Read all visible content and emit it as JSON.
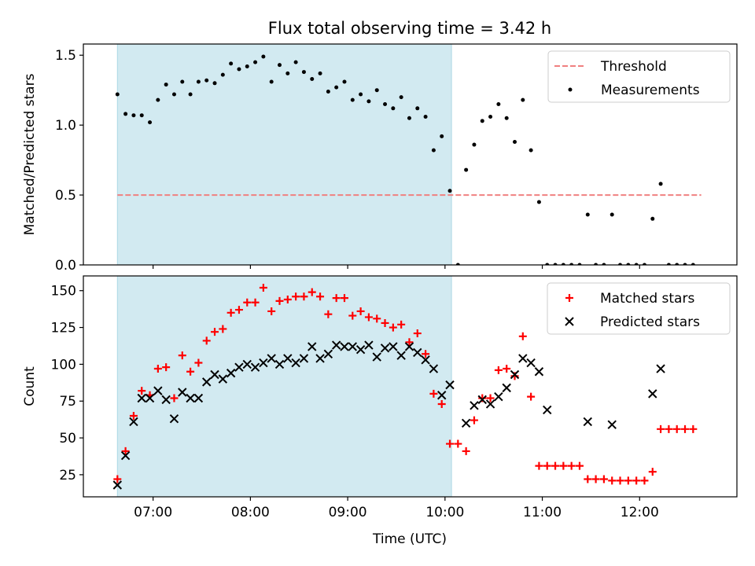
{
  "title": "Flux total observing time = 3.42 h",
  "xlabel": "Time (UTC)",
  "colors": {
    "shade": "#add8e6",
    "threshold": "#f08080",
    "matched": "#ff0000",
    "predicted": "#000000",
    "measurements": "#000000"
  },
  "chart_data": [
    {
      "type": "scatter",
      "panel": "top",
      "ylabel": "Matched/Predicted stars",
      "ylim": [
        0,
        1.58
      ],
      "yticks": [
        0.0,
        0.5,
        1.0,
        1.5
      ],
      "ytick_labels": [
        "0.0",
        "0.5",
        "1.0",
        "1.5"
      ],
      "xlim": [
        "06:17",
        "13:00"
      ],
      "shaded_span": [
        "06:38",
        "10:04"
      ],
      "legend": {
        "placement": "top-right",
        "entries": [
          "Threshold",
          "Measurements"
        ]
      },
      "threshold": {
        "name": "Threshold",
        "y": 0.5,
        "x": [
          "06:38",
          "12:38"
        ],
        "style": "dashed"
      },
      "series": [
        {
          "name": "Measurements",
          "marker": "dot",
          "points": [
            [
              "06:38",
              1.22
            ],
            [
              "06:43",
              1.08
            ],
            [
              "06:48",
              1.07
            ],
            [
              "06:53",
              1.07
            ],
            [
              "06:58",
              1.02
            ],
            [
              "07:03",
              1.18
            ],
            [
              "07:08",
              1.29
            ],
            [
              "07:13",
              1.22
            ],
            [
              "07:18",
              1.31
            ],
            [
              "07:23",
              1.22
            ],
            [
              "07:28",
              1.31
            ],
            [
              "07:33",
              1.32
            ],
            [
              "07:38",
              1.3
            ],
            [
              "07:43",
              1.36
            ],
            [
              "07:48",
              1.44
            ],
            [
              "07:53",
              1.4
            ],
            [
              "07:58",
              1.42
            ],
            [
              "08:03",
              1.45
            ],
            [
              "08:08",
              1.49
            ],
            [
              "08:13",
              1.31
            ],
            [
              "08:18",
              1.43
            ],
            [
              "08:23",
              1.37
            ],
            [
              "08:28",
              1.45
            ],
            [
              "08:33",
              1.38
            ],
            [
              "08:38",
              1.33
            ],
            [
              "08:43",
              1.37
            ],
            [
              "08:48",
              1.24
            ],
            [
              "08:53",
              1.27
            ],
            [
              "08:58",
              1.31
            ],
            [
              "09:03",
              1.18
            ],
            [
              "09:08",
              1.22
            ],
            [
              "09:13",
              1.17
            ],
            [
              "09:18",
              1.25
            ],
            [
              "09:23",
              1.15
            ],
            [
              "09:28",
              1.12
            ],
            [
              "09:33",
              1.2
            ],
            [
              "09:38",
              1.05
            ],
            [
              "09:43",
              1.12
            ],
            [
              "09:48",
              1.06
            ],
            [
              "09:53",
              0.82
            ],
            [
              "09:58",
              0.92
            ],
            [
              "10:03",
              0.53
            ],
            [
              "10:08",
              0.0
            ],
            [
              "10:13",
              0.68
            ],
            [
              "10:18",
              0.86
            ],
            [
              "10:23",
              1.03
            ],
            [
              "10:28",
              1.06
            ],
            [
              "10:33",
              1.15
            ],
            [
              "10:38",
              1.05
            ],
            [
              "10:43",
              0.88
            ],
            [
              "10:48",
              1.18
            ],
            [
              "10:53",
              0.82
            ],
            [
              "10:58",
              0.45
            ],
            [
              "11:03",
              0.0
            ],
            [
              "11:08",
              0.0
            ],
            [
              "11:13",
              0.0
            ],
            [
              "11:18",
              0.0
            ],
            [
              "11:23",
              0.0
            ],
            [
              "11:28",
              0.36
            ],
            [
              "11:33",
              0.0
            ],
            [
              "11:38",
              0.0
            ],
            [
              "11:43",
              0.36
            ],
            [
              "11:48",
              0.0
            ],
            [
              "11:53",
              0.0
            ],
            [
              "11:58",
              0.0
            ],
            [
              "12:03",
              0.0
            ],
            [
              "12:08",
              0.33
            ],
            [
              "12:13",
              0.58
            ],
            [
              "12:18",
              0.0
            ],
            [
              "12:23",
              0.0
            ],
            [
              "12:28",
              0.0
            ],
            [
              "12:33",
              0.0
            ]
          ]
        }
      ]
    },
    {
      "type": "scatter",
      "panel": "bottom",
      "ylabel": "Count",
      "ylim": [
        10,
        160
      ],
      "yticks": [
        25,
        50,
        75,
        100,
        125,
        150
      ],
      "ytick_labels": [
        "25",
        "50",
        "75",
        "100",
        "125",
        "150"
      ],
      "xlim": [
        "06:17",
        "13:00"
      ],
      "xticks": [
        "07:00",
        "08:00",
        "09:00",
        "10:00",
        "11:00",
        "12:00"
      ],
      "shaded_span": [
        "06:38",
        "10:04"
      ],
      "legend": {
        "placement": "top-right",
        "entries": [
          "Matched stars",
          "Predicted stars"
        ]
      },
      "series": [
        {
          "name": "Matched stars",
          "marker": "plus",
          "points": [
            [
              "06:38",
              22
            ],
            [
              "06:43",
              41
            ],
            [
              "06:48",
              65
            ],
            [
              "06:53",
              82
            ],
            [
              "06:58",
              79
            ],
            [
              "07:03",
              97
            ],
            [
              "07:08",
              98
            ],
            [
              "07:13",
              77
            ],
            [
              "07:18",
              106
            ],
            [
              "07:23",
              95
            ],
            [
              "07:28",
              101
            ],
            [
              "07:33",
              116
            ],
            [
              "07:38",
              122
            ],
            [
              "07:43",
              124
            ],
            [
              "07:48",
              135
            ],
            [
              "07:53",
              137
            ],
            [
              "07:58",
              142
            ],
            [
              "08:03",
              142
            ],
            [
              "08:08",
              152
            ],
            [
              "08:13",
              136
            ],
            [
              "08:18",
              143
            ],
            [
              "08:23",
              144
            ],
            [
              "08:28",
              146
            ],
            [
              "08:33",
              146
            ],
            [
              "08:38",
              149
            ],
            [
              "08:43",
              146
            ],
            [
              "08:48",
              134
            ],
            [
              "08:53",
              145
            ],
            [
              "08:58",
              145
            ],
            [
              "09:03",
              133
            ],
            [
              "09:08",
              136
            ],
            [
              "09:13",
              132
            ],
            [
              "09:18",
              131
            ],
            [
              "09:23",
              128
            ],
            [
              "09:28",
              125
            ],
            [
              "09:33",
              127
            ],
            [
              "09:38",
              115
            ],
            [
              "09:43",
              121
            ],
            [
              "09:48",
              107
            ],
            [
              "09:53",
              80
            ],
            [
              "09:58",
              73
            ],
            [
              "10:03",
              46
            ],
            [
              "10:08",
              46
            ],
            [
              "10:13",
              41
            ],
            [
              "10:18",
              62
            ],
            [
              "10:23",
              77
            ],
            [
              "10:28",
              77
            ],
            [
              "10:33",
              96
            ],
            [
              "10:38",
              97
            ],
            [
              "10:43",
              92
            ],
            [
              "10:48",
              119
            ],
            [
              "10:53",
              78
            ],
            [
              "10:58",
              31
            ],
            [
              "11:03",
              31
            ],
            [
              "11:08",
              31
            ],
            [
              "11:13",
              31
            ],
            [
              "11:18",
              31
            ],
            [
              "11:23",
              31
            ],
            [
              "11:28",
              22
            ],
            [
              "11:33",
              22
            ],
            [
              "11:38",
              22
            ],
            [
              "11:43",
              21
            ],
            [
              "11:48",
              21
            ],
            [
              "11:53",
              21
            ],
            [
              "11:58",
              21
            ],
            [
              "12:03",
              21
            ],
            [
              "12:08",
              27
            ],
            [
              "12:13",
              56
            ],
            [
              "12:18",
              56
            ],
            [
              "12:23",
              56
            ],
            [
              "12:28",
              56
            ],
            [
              "12:33",
              56
            ]
          ]
        },
        {
          "name": "Predicted stars",
          "marker": "x",
          "points": [
            [
              "06:38",
              18
            ],
            [
              "06:43",
              38
            ],
            [
              "06:48",
              61
            ],
            [
              "06:53",
              77
            ],
            [
              "06:58",
              77
            ],
            [
              "07:03",
              82
            ],
            [
              "07:08",
              76
            ],
            [
              "07:13",
              63
            ],
            [
              "07:18",
              81
            ],
            [
              "07:23",
              77
            ],
            [
              "07:28",
              77
            ],
            [
              "07:33",
              88
            ],
            [
              "07:38",
              93
            ],
            [
              "07:43",
              90
            ],
            [
              "07:48",
              94
            ],
            [
              "07:53",
              98
            ],
            [
              "07:58",
              100
            ],
            [
              "08:03",
              98
            ],
            [
              "08:08",
              101
            ],
            [
              "08:13",
              104
            ],
            [
              "08:18",
              100
            ],
            [
              "08:23",
              104
            ],
            [
              "08:28",
              101
            ],
            [
              "08:33",
              104
            ],
            [
              "08:38",
              112
            ],
            [
              "08:43",
              104
            ],
            [
              "08:48",
              107
            ],
            [
              "08:53",
              113
            ],
            [
              "08:58",
              112
            ],
            [
              "09:03",
              112
            ],
            [
              "09:08",
              110
            ],
            [
              "09:13",
              113
            ],
            [
              "09:18",
              105
            ],
            [
              "09:23",
              111
            ],
            [
              "09:28",
              112
            ],
            [
              "09:33",
              106
            ],
            [
              "09:38",
              112
            ],
            [
              "09:43",
              108
            ],
            [
              "09:48",
              103
            ],
            [
              "09:53",
              97
            ],
            [
              "09:58",
              79
            ],
            [
              "10:03",
              86
            ],
            [
              "10:13",
              60
            ],
            [
              "10:18",
              72
            ],
            [
              "10:23",
              76
            ],
            [
              "10:28",
              73
            ],
            [
              "10:33",
              78
            ],
            [
              "10:38",
              84
            ],
            [
              "10:43",
              93
            ],
            [
              "10:48",
              104
            ],
            [
              "10:53",
              101
            ],
            [
              "10:58",
              95
            ],
            [
              "11:03",
              69
            ],
            [
              "11:28",
              61
            ],
            [
              "11:43",
              59
            ],
            [
              "12:08",
              80
            ],
            [
              "12:13",
              97
            ]
          ]
        }
      ]
    }
  ]
}
